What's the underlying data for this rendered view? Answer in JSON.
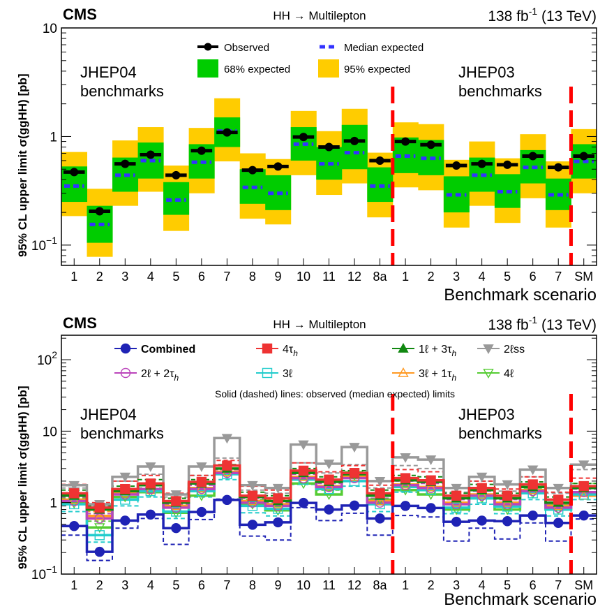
{
  "categories": [
    "1",
    "2",
    "3",
    "4",
    "5",
    "6",
    "7",
    "8",
    "9",
    "10",
    "11",
    "12",
    "8a",
    "1",
    "2",
    "3",
    "4",
    "5",
    "6",
    "7",
    "SM"
  ],
  "chart_data": [
    {
      "type": "line",
      "title": "HH → Multilepton",
      "experiment": "CMS",
      "lumi_prefix": "138 fb",
      "lumi_sup": "-1",
      "lumi_suffix": " (13 TeV)",
      "xlabel": "Benchmark scenario",
      "ylabel": "95% CL upper limit  σ(ggHH) [pb]",
      "yscale": "log",
      "ylim": [
        0.065,
        10
      ],
      "yticks": [
        {
          "v": 10,
          "base": "10",
          "exp": ""
        },
        {
          "v": 1,
          "base": "1",
          "exp": ""
        },
        {
          "v": 0.1,
          "base": "10",
          "exp": "−1"
        }
      ],
      "group_left": {
        "line1": "JHEP04",
        "line2": "benchmarks"
      },
      "group_right": {
        "line1": "JHEP03",
        "line2": "benchmarks"
      },
      "legend": {
        "observed": "Observed",
        "median": "Median expected",
        "band68": "68% expected",
        "band95": "95% expected"
      },
      "observed": [
        0.47,
        0.205,
        0.56,
        0.68,
        0.44,
        0.74,
        1.09,
        0.49,
        0.53,
        0.99,
        0.8,
        0.91,
        0.6,
        0.9,
        0.84,
        0.54,
        0.56,
        0.55,
        0.66,
        0.52,
        0.66
      ],
      "median": [
        0.35,
        0.155,
        0.44,
        0.6,
        0.26,
        0.58,
        1.12,
        0.34,
        0.3,
        0.85,
        0.56,
        0.71,
        0.35,
        0.66,
        0.63,
        0.29,
        0.44,
        0.31,
        0.52,
        0.29,
        0.59
      ],
      "band68_lo": [
        0.25,
        0.105,
        0.31,
        0.41,
        0.19,
        0.41,
        0.8,
        0.24,
        0.21,
        0.6,
        0.4,
        0.5,
        0.25,
        0.46,
        0.44,
        0.2,
        0.31,
        0.22,
        0.37,
        0.21,
        0.41
      ],
      "band68_hi": [
        0.53,
        0.23,
        0.64,
        0.88,
        0.38,
        0.85,
        1.5,
        0.5,
        0.44,
        1.22,
        0.8,
        1.28,
        0.52,
        0.98,
        0.93,
        0.43,
        0.64,
        0.45,
        0.75,
        0.41,
        0.85
      ],
      "band95_lo": [
        0.185,
        0.078,
        0.23,
        0.31,
        0.135,
        0.3,
        0.59,
        0.175,
        0.155,
        0.44,
        0.29,
        0.37,
        0.18,
        0.34,
        0.32,
        0.145,
        0.23,
        0.16,
        0.27,
        0.145,
        0.3
      ],
      "band95_hi": [
        0.72,
        0.33,
        0.92,
        1.22,
        0.54,
        1.2,
        2.25,
        0.7,
        0.62,
        1.72,
        1.12,
        1.8,
        0.71,
        1.35,
        1.3,
        0.61,
        0.9,
        0.63,
        1.05,
        0.59,
        1.17
      ],
      "colors": {
        "observed": "#000000",
        "median": "#3333ff",
        "band68": "#00cc00",
        "band95": "#ffcc00",
        "divider": "#ff0000"
      }
    },
    {
      "type": "line",
      "title": "HH → Multilepton",
      "experiment": "CMS",
      "lumi_prefix": "138 fb",
      "lumi_sup": "-1",
      "lumi_suffix": " (13 TeV)",
      "xlabel": "Benchmark scenario",
      "ylabel": "95% CL upper limit  σ(ggHH) [pb]",
      "yscale": "log",
      "ylim": [
        0.1,
        220
      ],
      "yticks": [
        {
          "v": 100,
          "base": "10",
          "exp": "2"
        },
        {
          "v": 10,
          "base": "10",
          "exp": ""
        },
        {
          "v": 1,
          "base": "1",
          "exp": ""
        },
        {
          "v": 0.1,
          "base": "10",
          "exp": "−1"
        }
      ],
      "group_left": {
        "line1": "JHEP04",
        "line2": "benchmarks"
      },
      "group_right": {
        "line1": "JHEP03",
        "line2": "benchmarks"
      },
      "note": "Solid (dashed) lines: observed (median expected) limits",
      "series": [
        {
          "name": "Combined",
          "id": "comb",
          "color": "#1f23b5",
          "marker": "circle-filled",
          "bold": true,
          "observed": [
            0.47,
            0.205,
            0.56,
            0.68,
            0.44,
            0.74,
            1.09,
            0.49,
            0.53,
            0.99,
            0.8,
            0.91,
            0.6,
            0.9,
            0.84,
            0.54,
            0.56,
            0.55,
            0.66,
            0.52,
            0.66
          ],
          "expected": [
            0.35,
            0.155,
            0.44,
            0.6,
            0.26,
            0.58,
            1.12,
            0.34,
            0.3,
            0.85,
            0.56,
            0.71,
            0.35,
            0.66,
            0.63,
            0.29,
            0.44,
            0.31,
            0.52,
            0.29,
            0.59
          ]
        },
        {
          "name": "4τ",
          "sub": "h",
          "id": "4tau",
          "color": "#ee3333",
          "marker": "square-filled",
          "bold": false,
          "observed": [
            1.35,
            0.85,
            1.55,
            1.85,
            1.05,
            1.95,
            3.3,
            1.25,
            1.15,
            2.8,
            2.1,
            2.6,
            1.35,
            2.2,
            2.05,
            1.25,
            1.6,
            1.25,
            1.8,
            1.1,
            1.7
          ],
          "expected": [
            1.8,
            1.0,
            2.0,
            2.4,
            1.35,
            2.4,
            3.9,
            1.7,
            1.5,
            3.6,
            2.7,
            3.3,
            1.75,
            2.9,
            2.7,
            1.6,
            2.0,
            1.55,
            2.3,
            1.4,
            2.2
          ]
        },
        {
          "name": "1ℓ + 3τ",
          "sub": "h",
          "id": "1l3tau",
          "color": "#118811",
          "marker": "triangle-filled",
          "bold": false,
          "observed": [
            1.25,
            0.8,
            1.45,
            1.75,
            1.0,
            1.85,
            3.0,
            1.2,
            1.05,
            2.6,
            1.95,
            2.5,
            1.25,
            2.05,
            1.95,
            1.15,
            1.5,
            1.15,
            1.65,
            1.0,
            1.6
          ],
          "expected": [
            1.5,
            0.9,
            1.7,
            2.1,
            1.15,
            2.1,
            3.4,
            1.4,
            1.25,
            3.0,
            2.3,
            2.8,
            1.5,
            2.4,
            2.3,
            1.35,
            1.8,
            1.35,
            1.95,
            1.2,
            1.85
          ]
        },
        {
          "name": "2ℓss",
          "sub": "",
          "id": "2lss",
          "color": "#999999",
          "marker": "triangle-down-filled",
          "bold": false,
          "observed": [
            1.75,
            0.95,
            2.3,
            3.2,
            1.3,
            3.2,
            8.0,
            1.75,
            1.6,
            6.5,
            3.5,
            6.0,
            2.0,
            4.3,
            4.0,
            1.6,
            2.3,
            1.8,
            2.9,
            1.6,
            3.4
          ],
          "expected": [
            1.6,
            0.9,
            2.0,
            2.5,
            1.2,
            2.4,
            4.2,
            1.5,
            1.35,
            3.6,
            2.6,
            3.4,
            1.6,
            3.3,
            3.0,
            1.4,
            2.0,
            1.45,
            2.3,
            1.35,
            2.9
          ]
        },
        {
          "name": "2ℓ + 2τ",
          "sub": "h",
          "id": "2l2tau",
          "color": "#bb44bb",
          "marker": "circle-open",
          "bold": false,
          "observed": [
            1.05,
            0.6,
            1.3,
            1.55,
            0.85,
            1.55,
            2.6,
            1.0,
            0.9,
            2.2,
            1.65,
            2.2,
            1.0,
            1.75,
            1.6,
            0.95,
            1.25,
            0.95,
            1.45,
            0.85,
            1.4
          ],
          "expected": [
            1.2,
            0.7,
            1.45,
            1.75,
            0.95,
            1.75,
            2.9,
            1.15,
            1.0,
            2.5,
            1.85,
            2.4,
            1.15,
            2.0,
            1.85,
            1.1,
            1.45,
            1.1,
            1.65,
            0.95,
            1.55
          ]
        },
        {
          "name": "3ℓ",
          "sub": "",
          "id": "3l",
          "color": "#22cccc",
          "marker": "square-open",
          "bold": false,
          "observed": [
            0.95,
            0.35,
            1.1,
            1.45,
            0.75,
            1.45,
            2.5,
            0.9,
            0.82,
            2.1,
            1.55,
            2.0,
            0.95,
            1.65,
            1.5,
            0.85,
            1.15,
            0.88,
            1.35,
            0.8,
            1.3
          ],
          "expected": [
            0.75,
            0.28,
            0.9,
            1.2,
            0.6,
            1.2,
            2.1,
            0.72,
            0.65,
            1.8,
            1.3,
            1.7,
            0.75,
            1.4,
            1.3,
            0.7,
            0.95,
            0.7,
            1.1,
            0.65,
            1.1
          ]
        },
        {
          "name": "3ℓ + 1τ",
          "sub": "h",
          "id": "3l1tau",
          "color": "#ff9922",
          "marker": "triangle-open",
          "bold": false,
          "observed": [
            1.1,
            0.65,
            1.35,
            1.5,
            0.9,
            1.6,
            2.7,
            1.05,
            0.95,
            2.3,
            1.7,
            2.3,
            1.05,
            1.8,
            1.65,
            1.0,
            1.3,
            1.0,
            1.5,
            0.9,
            1.25
          ],
          "expected": [
            1.3,
            0.75,
            1.55,
            1.85,
            1.0,
            1.85,
            3.0,
            1.25,
            1.1,
            2.6,
            1.95,
            2.55,
            1.25,
            2.1,
            1.95,
            1.15,
            1.5,
            1.15,
            1.75,
            1.0,
            1.6
          ]
        },
        {
          "name": "4ℓ",
          "sub": "",
          "id": "4l",
          "color": "#55cc33",
          "marker": "triangle-down-open",
          "bold": false,
          "observed": [
            0.98,
            0.45,
            1.2,
            1.4,
            0.72,
            1.25,
            2.55,
            0.95,
            0.78,
            1.85,
            1.3,
            2.4,
            1.1,
            1.5,
            1.3,
            0.8,
            1.15,
            0.8,
            1.35,
            0.8,
            1.65
          ],
          "expected": [
            1.15,
            0.55,
            1.35,
            1.6,
            0.85,
            1.45,
            2.9,
            1.1,
            0.9,
            2.1,
            1.5,
            2.7,
            1.25,
            1.7,
            1.5,
            0.95,
            1.3,
            0.95,
            1.55,
            0.95,
            1.85
          ]
        }
      ],
      "colors": {
        "divider": "#ff0000"
      }
    }
  ]
}
